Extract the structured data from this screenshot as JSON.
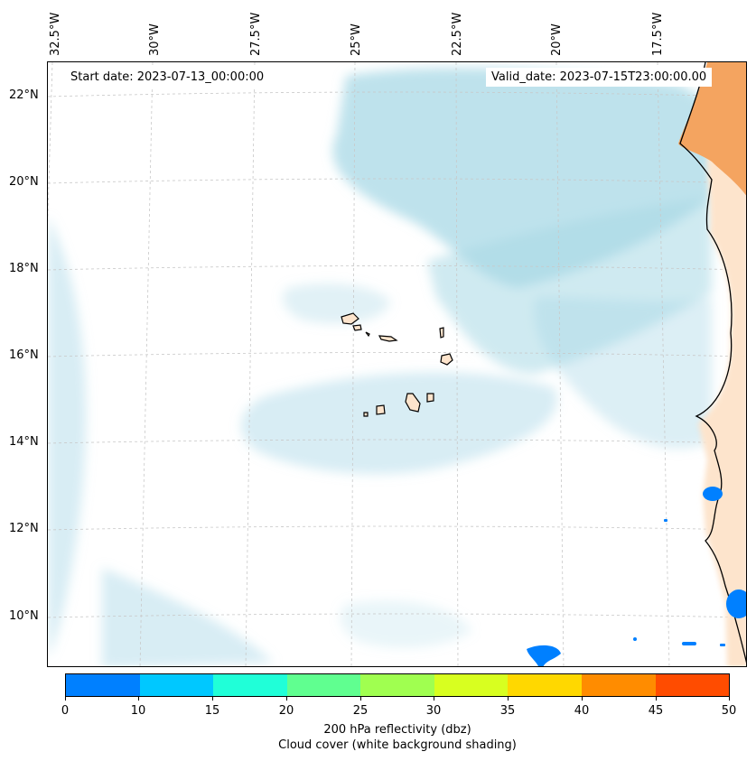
{
  "map": {
    "start_date": "Start date: 2023-07-13_00:00:00",
    "valid_date": "Valid_date: 2023-07-15T23:00:00.00",
    "lon_labels": [
      "32.5°W",
      "30°W",
      "27.5°W",
      "25°W",
      "22.5°W",
      "20°W",
      "17.5°W"
    ],
    "lat_labels": [
      "22°N",
      "20°N",
      "18°N",
      "16°N",
      "14°N",
      "12°N",
      "10°N"
    ],
    "colors": {
      "cloud": "#a8d8e6",
      "land_high": "#f4a460",
      "land_low": "#fde4cc",
      "reflectivity_low": "#0080ff",
      "coastline": "#000000",
      "grid": "#c8c8c8"
    }
  },
  "colorbar": {
    "ticks": [
      "0",
      "10",
      "15",
      "20",
      "25",
      "30",
      "35",
      "40",
      "45",
      "50"
    ],
    "colors": [
      "#0080ff",
      "#00c8ff",
      "#20ffd8",
      "#60ff90",
      "#a0ff50",
      "#d8ff20",
      "#ffd800",
      "#ff8c00",
      "#ff4c00"
    ],
    "label": "200 hPa reflectivity (dbz)",
    "sublabel": "Cloud cover (white background shading)"
  }
}
